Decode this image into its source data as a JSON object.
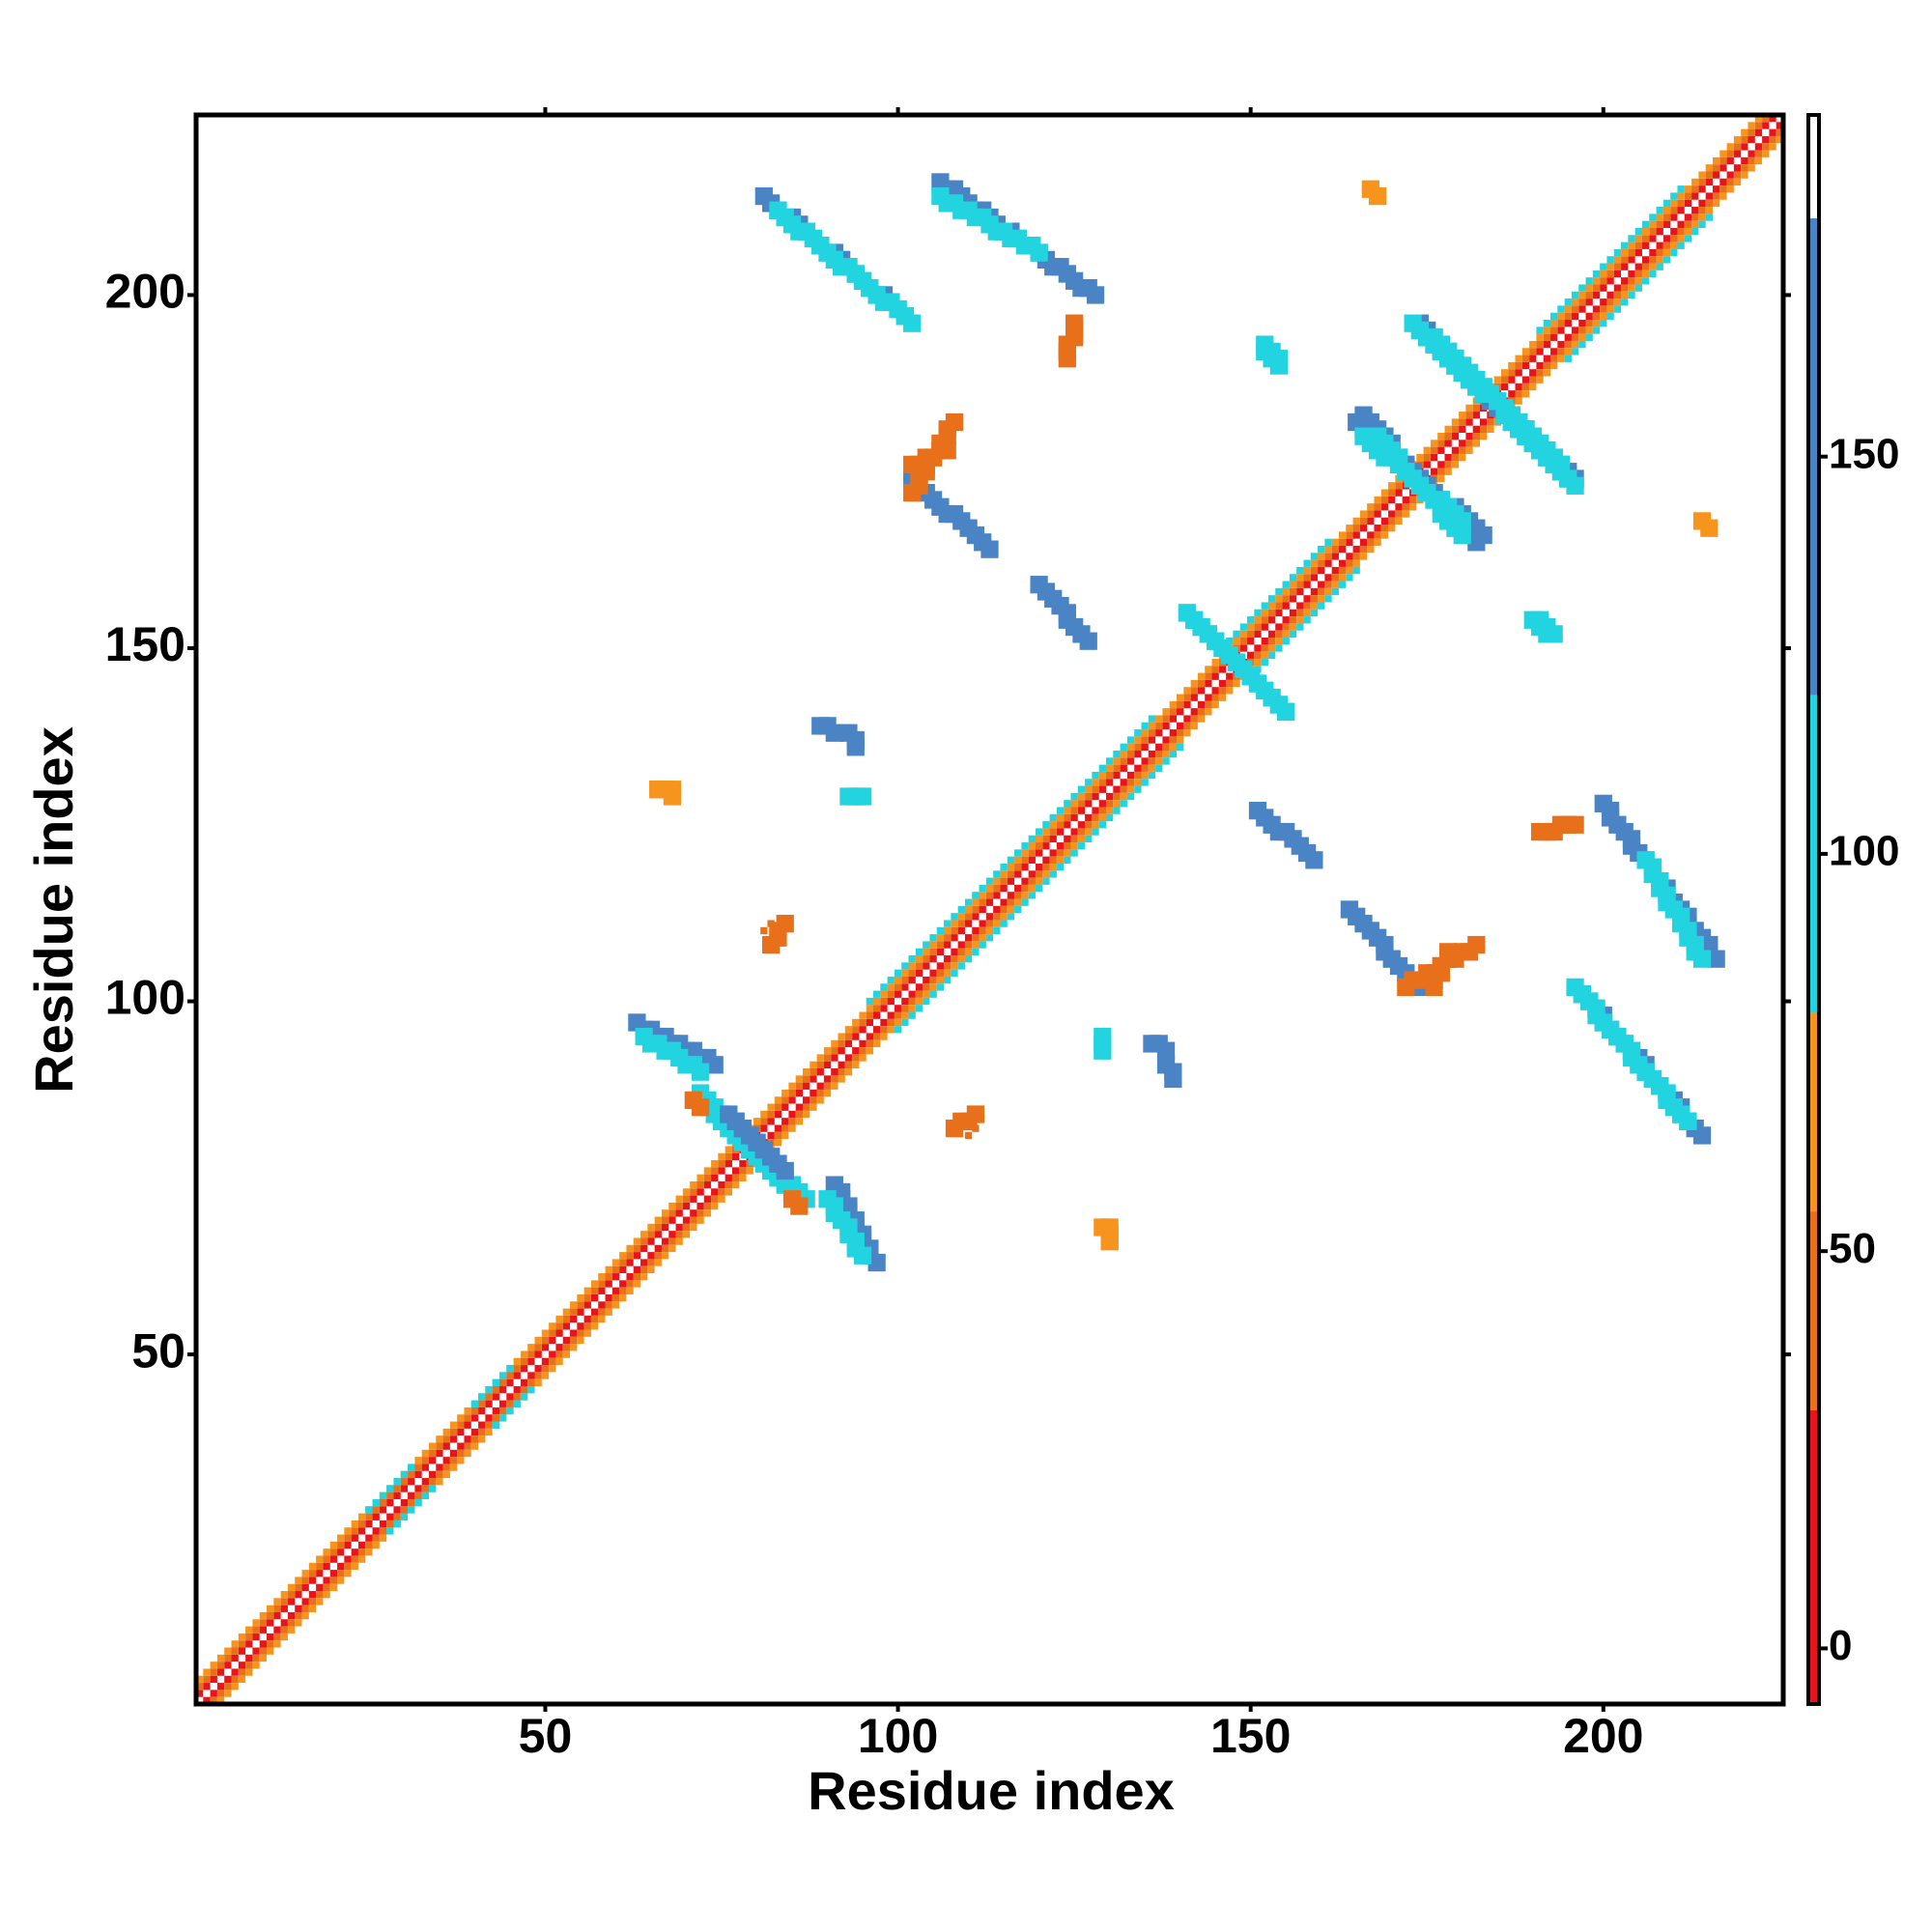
{
  "chart_data": {
    "type": "heatmap",
    "xlabel": "Residue index",
    "ylabel": "Residue index",
    "xlim": [
      0.5,
      225.5
    ],
    "ylim": [
      0.5,
      225.5
    ],
    "xticks": [
      50,
      100,
      150,
      200
    ],
    "yticks": [
      50,
      100,
      150,
      200
    ],
    "symmetric": true,
    "colorbar": {
      "lim": [
        -7,
        193
      ],
      "ticks": [
        0,
        50,
        100,
        150
      ],
      "bounds": [
        -7,
        30,
        55,
        80,
        120,
        180,
        193
      ],
      "colors": [
        "#e8141c",
        "#e8701a",
        "#f7941d",
        "#22d3e0",
        "#4a84c4",
        "#ffffff"
      ]
    },
    "segments": [
      {
        "x": [
          2,
          225
        ],
        "y": [
          1,
          224
        ],
        "value": 15
      },
      {
        "x": [
          3,
          225
        ],
        "y": [
          1,
          223
        ],
        "value": 45
      },
      {
        "x": [
          4,
          225
        ],
        "y": [
          1,
          222
        ],
        "value": 65
      },
      {
        "x": [
          100,
          140
        ],
        "y": [
          96,
          136
        ],
        "value": 100
      },
      {
        "x": [
          150,
          165
        ],
        "y": [
          146,
          161
        ],
        "value": 100
      },
      {
        "x": [
          195,
          215
        ],
        "y": [
          191,
          211
        ],
        "value": 100
      },
      {
        "x": [
          28,
          34
        ],
        "y": [
          25,
          31
        ],
        "value": 100
      },
      {
        "x": [
          43,
          48
        ],
        "y": [
          40,
          45
        ],
        "value": 100
      },
      {
        "x": [
          81,
          101
        ],
        "y": [
          214,
          197
        ],
        "value": 150
      },
      {
        "x": [
          83,
          102
        ],
        "y": [
          212,
          196
        ],
        "value": 100
      },
      {
        "x": [
          106,
          128
        ],
        "y": [
          216,
          200
        ],
        "value": 150
      },
      {
        "x": [
          106,
          120
        ],
        "y": [
          214,
          206
        ],
        "value": 100
      },
      {
        "x": [
          102,
          113
        ],
        "y": [
          174,
          164
        ],
        "value": 150
      },
      {
        "x": [
          120,
          127
        ],
        "y": [
          159,
          151
        ],
        "value": 150
      },
      {
        "x": [
          63,
          74
        ],
        "y": [
          97,
          91
        ],
        "value": 150
      },
      {
        "x": [
          64,
          72
        ],
        "y": [
          95,
          90
        ],
        "value": 100
      },
      {
        "x": [
          72,
          85
        ],
        "y": [
          87,
          73
        ],
        "value": 100
      },
      {
        "x": [
          76,
          83
        ],
        "y": [
          84,
          77
        ],
        "value": 150
      },
      {
        "x": [
          165,
          183
        ],
        "y": [
          182,
          166
        ],
        "value": 150
      },
      {
        "x": [
          166,
          180
        ],
        "y": [
          180,
          168
        ],
        "value": 100
      },
      {
        "x": [
          174,
          195
        ],
        "y": [
          196,
          174
        ],
        "value": 150
      },
      {
        "x": [
          176,
          196
        ],
        "y": [
          194,
          173
        ],
        "value": 100
      },
      {
        "x": [
          141,
          155
        ],
        "y": [
          155,
          141
        ],
        "value": 100
      },
      {
        "x": [
          152,
          154
        ],
        "y": [
          193,
          191
        ],
        "value": 100
      },
      {
        "x": [
          190,
          192
        ],
        "y": [
          154,
          152
        ],
        "value": 100
      },
      {
        "x": [
          89,
          91
        ],
        "y": [
          139,
          138
        ],
        "value": 150
      },
      {
        "x": [
          93,
          95
        ],
        "y": [
          129,
          129
        ],
        "value": 100
      },
      {
        "x": [
          136,
          138
        ],
        "y": [
          94,
          93
        ],
        "value": 150
      },
      {
        "x": [
          167,
          168
        ],
        "y": [
          215,
          214
        ],
        "value": 60
      },
      {
        "x": [
          129,
          130
        ],
        "y": [
          68,
          66
        ],
        "value": 60
      },
      {
        "x": [
          66,
          68
        ],
        "y": [
          130,
          130
        ],
        "value": 60
      },
      {
        "x": [
          85,
          86
        ],
        "y": [
          72,
          71
        ],
        "value": 40
      },
      {
        "x": [
          176,
          178
        ],
        "y": [
          102,
          107
        ],
        "value": 40
      },
      {
        "x": [
          108,
          111
        ],
        "y": [
          82,
          84
        ],
        "value": 40
      },
      {
        "x": [
          102,
          108
        ],
        "y": [
          172,
          182
        ],
        "value": 40
      },
      {
        "x": [
          124,
          125
        ],
        "y": [
          191,
          196
        ],
        "value": 30
      },
      {
        "x": [
          81,
          82
        ],
        "y": [
          110,
          111
        ],
        "value": 40
      }
    ]
  }
}
